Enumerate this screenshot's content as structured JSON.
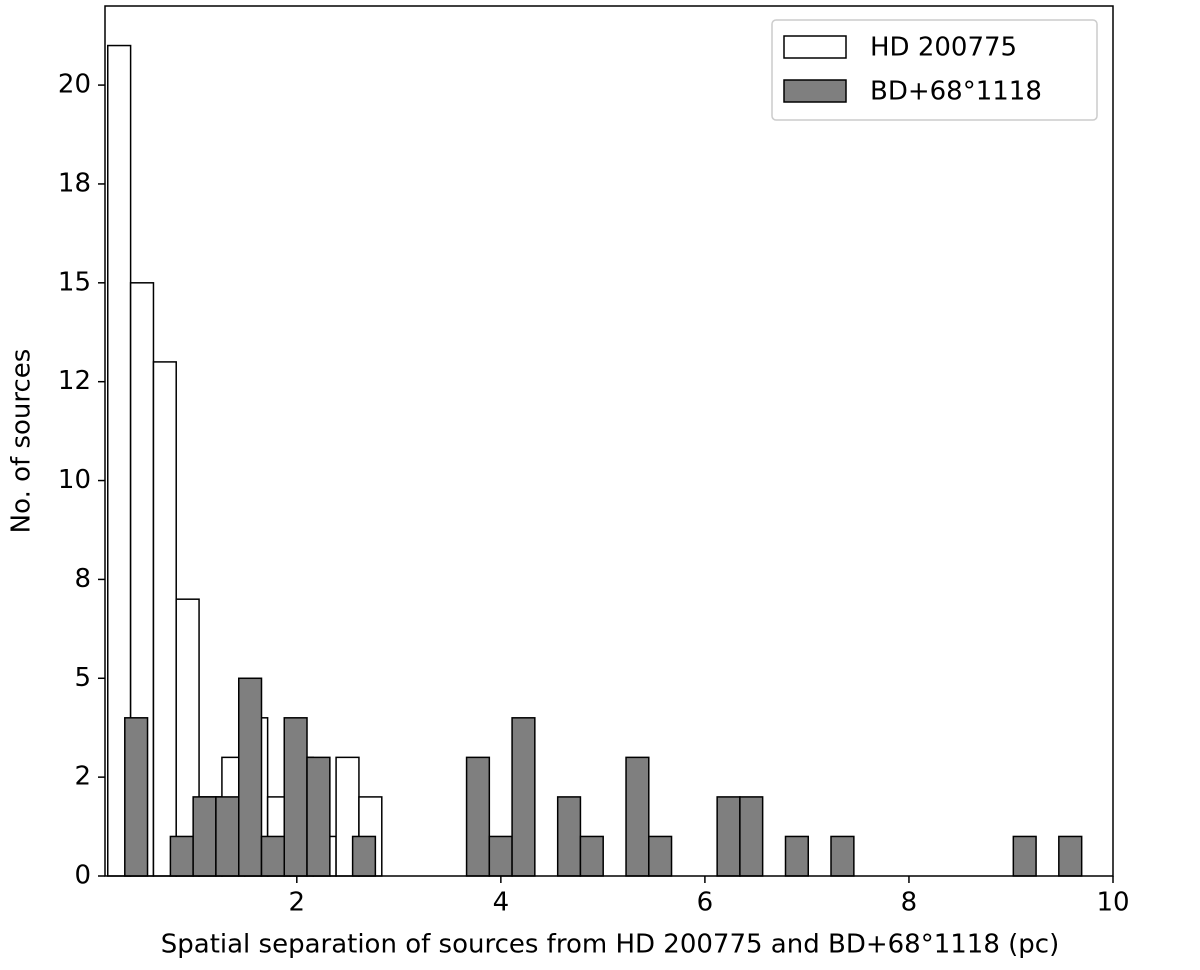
{
  "chart_data": {
    "type": "histogram",
    "xlabel": "Spatial separation of sources from HD 200775 and BD+68°1118 (pc)",
    "ylabel": "No. of sources",
    "xlim": [
      0.12,
      10
    ],
    "xticks": [
      2,
      4,
      6,
      8,
      10
    ],
    "ylim": [
      0,
      22
    ],
    "yticks": [
      0,
      {
        "value": 2.5,
        "label": "2"
      },
      5,
      {
        "value": 7.5,
        "label": "8"
      },
      10,
      {
        "value": 12.5,
        "label": "12"
      },
      15,
      {
        "value": 17.5,
        "label": "18"
      },
      20
    ],
    "legend": "upper right",
    "series": [
      {
        "name": "HD 200775",
        "color": "#ffffff",
        "bins": [
          0.147,
          0.371,
          0.595,
          0.818,
          1.042,
          1.266,
          1.49,
          1.714,
          1.937,
          2.161,
          2.385,
          2.609,
          2.833
        ],
        "values": [
          21,
          15,
          13,
          7,
          2,
          3,
          4,
          2,
          3,
          1,
          3,
          2
        ]
      },
      {
        "name": "BD+68°1118",
        "color": "#7f7f7f",
        "bins": [
          0.314,
          0.537,
          0.761,
          0.984,
          1.207,
          1.431,
          1.654,
          1.877,
          2.1,
          2.324,
          2.547,
          2.77,
          2.994,
          3.217,
          3.44,
          3.664,
          3.887,
          4.11,
          4.333,
          4.557,
          4.78,
          5.003,
          5.227,
          5.45,
          5.673,
          5.897,
          6.12,
          6.343,
          6.566,
          6.79,
          7.013,
          7.236,
          7.46,
          7.683,
          7.906,
          8.13,
          8.353,
          8.576,
          8.799,
          9.023,
          9.246,
          9.469,
          9.693
        ],
        "values": [
          4,
          0,
          1,
          2,
          2,
          5,
          1,
          4,
          3,
          0,
          1,
          0,
          0,
          0,
          0,
          3,
          1,
          4,
          0,
          2,
          1,
          0,
          3,
          1,
          0,
          0,
          2,
          2,
          0,
          1,
          0,
          1,
          0,
          0,
          0,
          0,
          0,
          0,
          0,
          1,
          0,
          1
        ]
      }
    ]
  }
}
